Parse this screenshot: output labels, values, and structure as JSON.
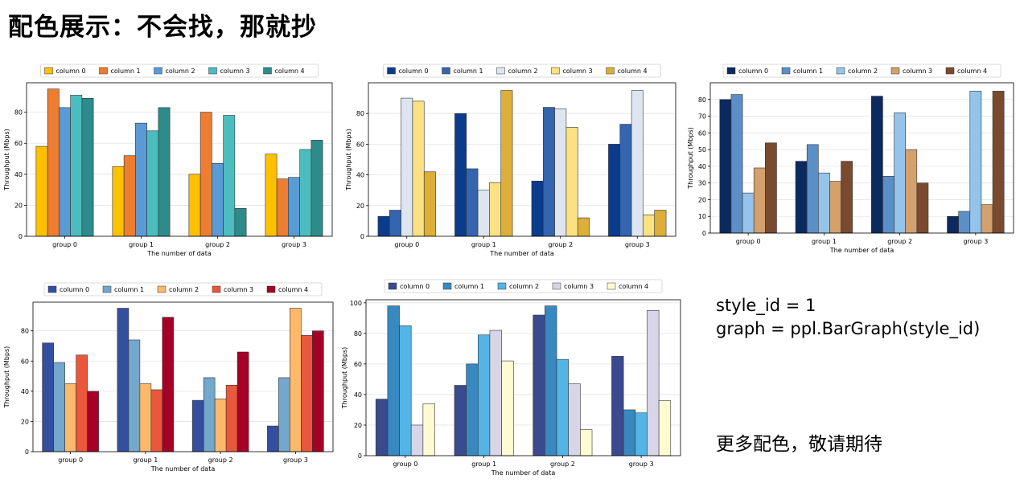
{
  "page": {
    "title": "配色展示：不会找，那就抄",
    "code_lines": [
      "style_id = 1",
      "graph = ppl.BarGraph(style_id)"
    ],
    "footer": "更多配色，敬请期待"
  },
  "chart_data": [
    {
      "type": "bar",
      "categories": [
        "group 0",
        "group 1",
        "group 2",
        "group 3"
      ],
      "xlabel": "The number of data",
      "ylabel": "Throughput (Mbps)",
      "ylim": [
        0,
        99
      ],
      "yticks": [
        0,
        20,
        40,
        60,
        80
      ],
      "grid": true,
      "legend": "top",
      "series": [
        {
          "name": "column 0",
          "color": "#FFC000",
          "values": [
            58,
            45,
            40,
            53
          ]
        },
        {
          "name": "column 1",
          "color": "#ED7D31",
          "values": [
            95,
            52,
            80,
            37
          ]
        },
        {
          "name": "column 2",
          "color": "#5B9BD5",
          "values": [
            83,
            73,
            47,
            38
          ]
        },
        {
          "name": "column 3",
          "color": "#4CBDBE",
          "values": [
            91,
            68,
            78,
            56
          ]
        },
        {
          "name": "column 4",
          "color": "#2E8B8B",
          "values": [
            89,
            83,
            18,
            62
          ]
        }
      ]
    },
    {
      "type": "bar",
      "categories": [
        "group 0",
        "group 1",
        "group 2",
        "group 3"
      ],
      "xlabel": "The number of data",
      "ylabel": "Throughput (Mbps)",
      "ylim": [
        0,
        100
      ],
      "yticks": [
        0,
        20,
        40,
        60,
        80
      ],
      "grid": true,
      "legend": "top",
      "series": [
        {
          "name": "column 0",
          "color": "#0B3C8C",
          "values": [
            13,
            80,
            36,
            60
          ]
        },
        {
          "name": "column 1",
          "color": "#3465AE",
          "values": [
            17,
            44,
            84,
            73
          ]
        },
        {
          "name": "column 2",
          "color": "#DDE6F0",
          "values": [
            90,
            30,
            83,
            95
          ]
        },
        {
          "name": "column 3",
          "color": "#FBE182",
          "values": [
            88,
            35,
            71,
            14
          ]
        },
        {
          "name": "column 4",
          "color": "#DDAF38",
          "values": [
            42,
            95,
            12,
            17
          ]
        }
      ]
    },
    {
      "type": "bar",
      "categories": [
        "group 0",
        "group 1",
        "group 2",
        "group 3"
      ],
      "xlabel": "The number of data",
      "ylabel": "Throughput (Mbps)",
      "ylim": [
        0,
        90
      ],
      "yticks": [
        0,
        10,
        20,
        30,
        40,
        50,
        60,
        70,
        80
      ],
      "grid": true,
      "legend": "top",
      "series": [
        {
          "name": "column 0",
          "color": "#0C2A5E",
          "values": [
            80,
            43,
            82,
            10
          ]
        },
        {
          "name": "column 1",
          "color": "#5B8FC7",
          "values": [
            83,
            53,
            34,
            13
          ]
        },
        {
          "name": "column 2",
          "color": "#94C4EA",
          "values": [
            24,
            36,
            72,
            85
          ]
        },
        {
          "name": "column 3",
          "color": "#D3A06E",
          "values": [
            39,
            31,
            50,
            17
          ]
        },
        {
          "name": "column 4",
          "color": "#7A4A2E",
          "values": [
            54,
            43,
            30,
            85
          ]
        }
      ]
    },
    {
      "type": "bar",
      "categories": [
        "group 0",
        "group 1",
        "group 2",
        "group 3"
      ],
      "xlabel": "The number of data",
      "ylabel": "Throughput (Mbps)",
      "ylim": [
        0,
        99
      ],
      "yticks": [
        0,
        20,
        40,
        60,
        80
      ],
      "grid": true,
      "legend": "top",
      "series": [
        {
          "name": "column 0",
          "color": "#344EA0",
          "values": [
            72,
            95,
            34,
            17
          ]
        },
        {
          "name": "column 1",
          "color": "#73A7CC",
          "values": [
            59,
            74,
            49,
            49
          ]
        },
        {
          "name": "column 2",
          "color": "#FDB96B",
          "values": [
            45,
            45,
            35,
            95
          ]
        },
        {
          "name": "column 3",
          "color": "#E9573C",
          "values": [
            64,
            41,
            44,
            77
          ]
        },
        {
          "name": "column 4",
          "color": "#A50026",
          "values": [
            40,
            89,
            66,
            80
          ]
        }
      ]
    },
    {
      "type": "bar",
      "categories": [
        "group 0",
        "group 1",
        "group 2",
        "group 3"
      ],
      "xlabel": "The number of data",
      "ylabel": "Throughput (Mbps)",
      "ylim": [
        0,
        102
      ],
      "yticks": [
        0,
        20,
        40,
        60,
        80,
        100
      ],
      "grid": true,
      "legend": "top",
      "series": [
        {
          "name": "column 0",
          "color": "#3B4A8E",
          "values": [
            37,
            46,
            92,
            65
          ]
        },
        {
          "name": "column 1",
          "color": "#3889BF",
          "values": [
            98,
            60,
            98,
            30
          ]
        },
        {
          "name": "column 2",
          "color": "#54B4E6",
          "values": [
            85,
            79,
            63,
            28
          ]
        },
        {
          "name": "column 3",
          "color": "#D9D5E8",
          "values": [
            20,
            82,
            47,
            95
          ]
        },
        {
          "name": "column 4",
          "color": "#FEFBD2",
          "values": [
            34,
            62,
            17,
            36
          ]
        }
      ]
    }
  ]
}
